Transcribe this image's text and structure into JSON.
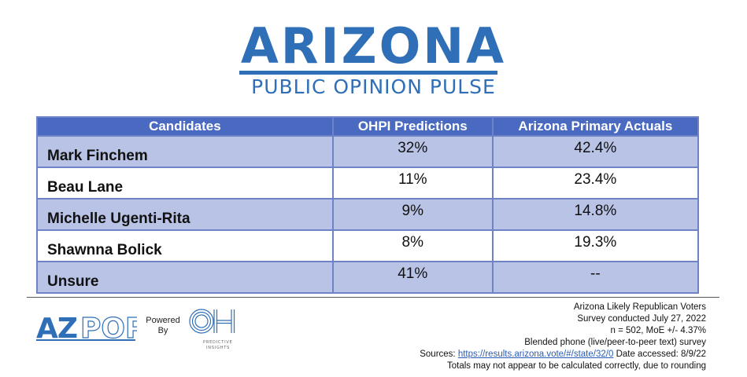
{
  "header": {
    "title": "ARIZONA",
    "subtitle": "PUBLIC OPINION PULSE"
  },
  "table": {
    "columns": [
      "Candidates",
      "OHPI Predictions",
      "Arizona Primary Actuals"
    ],
    "rows": [
      {
        "candidate": "Mark Finchem",
        "prediction": "32%",
        "actual": "42.4%"
      },
      {
        "candidate": "Beau Lane",
        "prediction": "11%",
        "actual": "23.4%"
      },
      {
        "candidate": "Michelle Ugenti-Rita",
        "prediction": "9%",
        "actual": "14.8%"
      },
      {
        "candidate": "Shawnna Bolick",
        "prediction": "8%",
        "actual": "19.3%"
      },
      {
        "candidate": "Unsure",
        "prediction": "41%",
        "actual": "--"
      }
    ]
  },
  "footer": {
    "azpop_logo_text": "AZPOP",
    "powered_by": "Powered By",
    "oh_logo_text": "OH",
    "oh_logo_subtext": "PREDICTIVE INSIGHTS",
    "notes": {
      "line1": "Arizona Likely Republican Voters",
      "line2": "Survey conducted July 27, 2022",
      "line3": "n = 502, MoE +/- 4.37%",
      "line4": "Blended phone (live/peer-to-peer text) survey",
      "sources_label": "Sources:",
      "sources_link": "https://results.arizona.vote/#/state/32/0",
      "date_accessed": "Date accessed: 8/9/22",
      "line6": "Totals may not appear to be calculated correctly, due to rounding"
    }
  },
  "colors": {
    "brand_blue": "#2f6fb8",
    "header_row": "#4a69c1",
    "shaded_row": "#b8c3e5"
  }
}
